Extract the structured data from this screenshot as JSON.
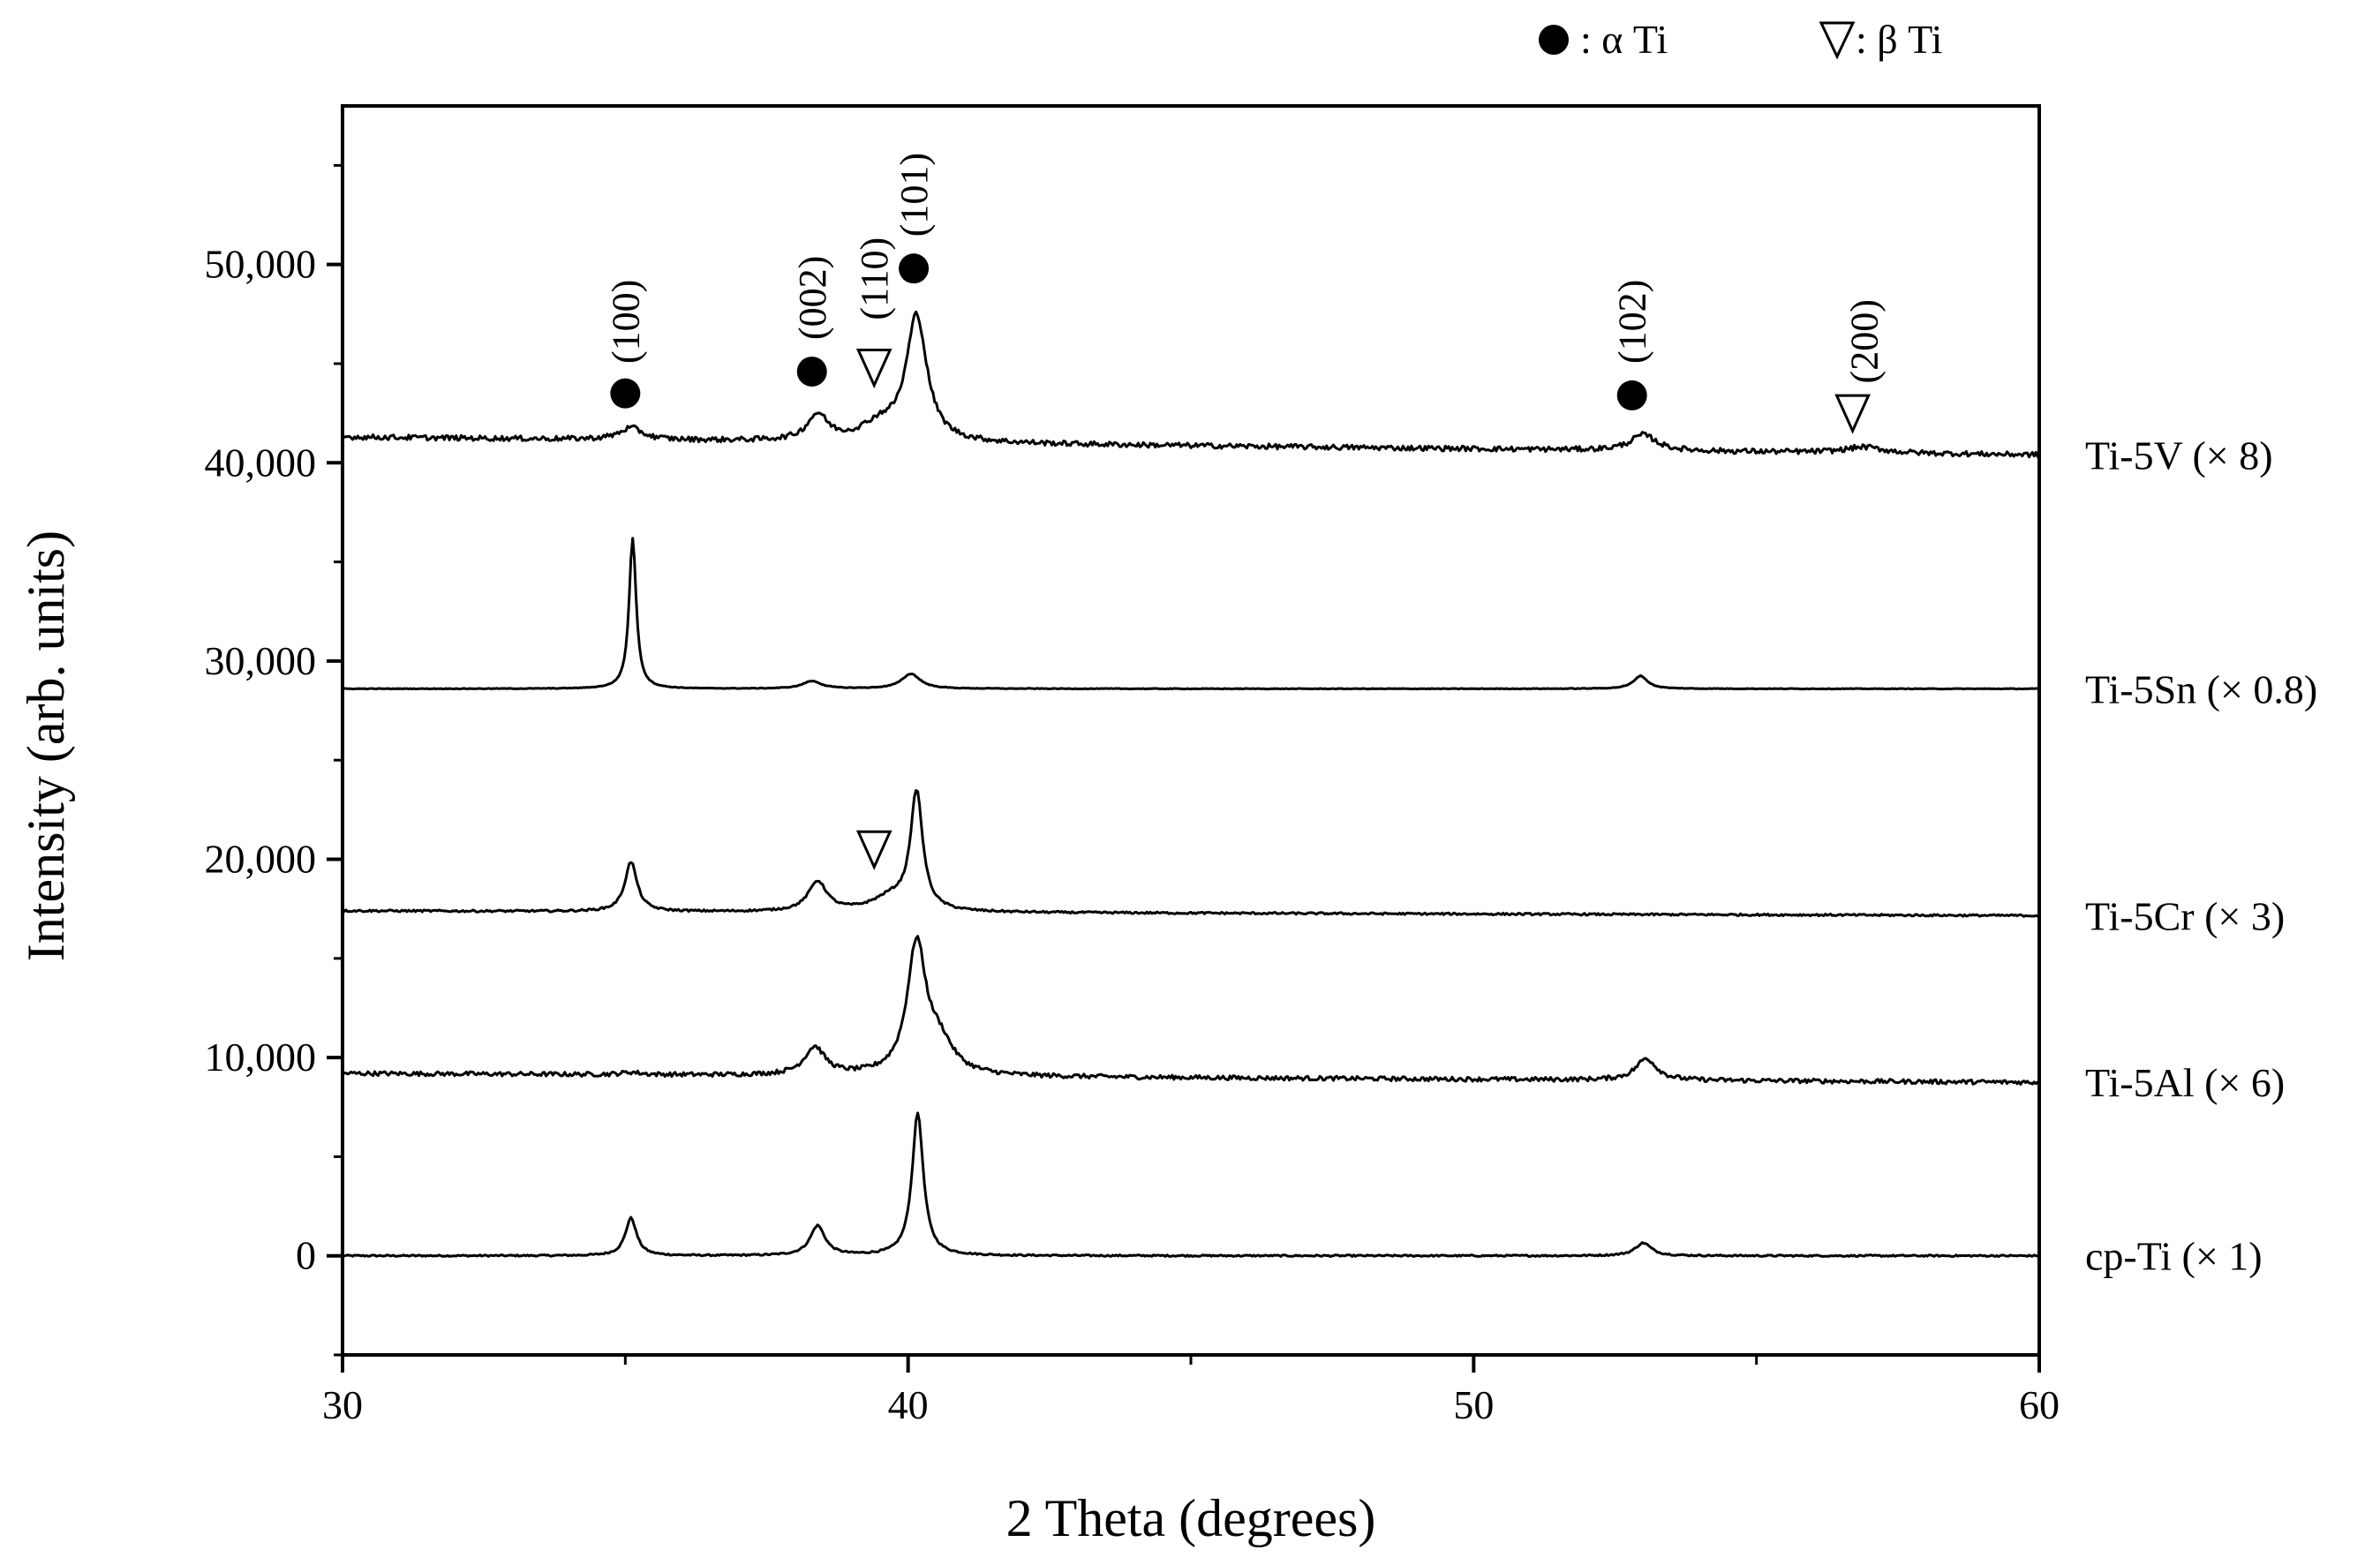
{
  "chart_data": {
    "type": "line",
    "title": "",
    "xlabel": "2 Theta (degrees)",
    "ylabel": "Intensity (arb. units)",
    "xlim": [
      30,
      60
    ],
    "ylim": [
      -5000,
      58000
    ],
    "x_ticks": [
      30,
      40,
      50,
      60
    ],
    "x_tick_labels": [
      "30",
      "40",
      "50",
      "60"
    ],
    "y_ticks": [
      0,
      10000,
      20000,
      30000,
      40000,
      50000
    ],
    "y_tick_labels": [
      "0",
      "10,000",
      "20,000",
      "30,000",
      "40,000",
      "50,000"
    ],
    "grid": false,
    "legend": {
      "placement": "top-right",
      "entries": [
        {
          "marker": "filled-circle",
          "label": ": α Ti"
        },
        {
          "marker": "open-down-triangle",
          "label": ": β Ti"
        }
      ]
    },
    "series": [
      {
        "name": "cp-Ti (× 1)",
        "baseline": 0,
        "noise": 40,
        "slope": 0,
        "peaks": [
          [
            35.1,
            1900,
            0.12
          ],
          [
            38.4,
            1500,
            0.16
          ],
          [
            40.17,
            7200,
            0.12
          ],
          [
            53.0,
            650,
            0.17
          ]
        ]
      },
      {
        "name": "Ti-5Al (× 6)",
        "baseline": 9200,
        "noise": 110,
        "slope": -15,
        "peaks": [
          [
            35.1,
            120,
            0.2
          ],
          [
            38.35,
            1400,
            0.22
          ],
          [
            40.15,
            6500,
            0.2
          ],
          [
            40.55,
            1500,
            0.3
          ],
          [
            53.05,
            1100,
            0.22
          ]
        ]
      },
      {
        "name": "Ti-5Cr (× 3)",
        "baseline": 17400,
        "noise": 50,
        "slope": -8,
        "peaks": [
          [
            35.1,
            2500,
            0.13
          ],
          [
            38.4,
            1500,
            0.2
          ],
          [
            39.7,
            700,
            0.4
          ],
          [
            40.15,
            5900,
            0.13
          ]
        ]
      },
      {
        "name": "Ti-5Sn (× 0.8)",
        "baseline": 28600,
        "noise": 15,
        "slope": 0,
        "peaks": [
          [
            35.13,
            7600,
            0.075
          ],
          [
            38.3,
            380,
            0.2
          ],
          [
            40.05,
            750,
            0.2
          ],
          [
            52.95,
            650,
            0.15
          ]
        ]
      },
      {
        "name": "Ti-5V (× 8)",
        "baseline": 41300,
        "noise": 130,
        "slope": -30,
        "peaks": [
          [
            35.1,
            600,
            0.25
          ],
          [
            38.4,
            1300,
            0.22
          ],
          [
            39.5,
            800,
            0.4
          ],
          [
            40.15,
            6300,
            0.22
          ],
          [
            53.0,
            800,
            0.28
          ],
          [
            56.9,
            300,
            0.4
          ]
        ]
      }
    ],
    "annotations": [
      {
        "type": "circle",
        "x": 35.0,
        "y": 43500
      },
      {
        "type": "text",
        "text": "(100)",
        "x": 35.0,
        "y": 45000
      },
      {
        "type": "circle",
        "x": 38.3,
        "y": 44600
      },
      {
        "type": "text",
        "text": "(002)",
        "x": 38.3,
        "y": 46200
      },
      {
        "type": "triangle",
        "x": 39.4,
        "y": 44800
      },
      {
        "type": "text",
        "text": "(110)",
        "x": 39.4,
        "y": 47200
      },
      {
        "type": "circle",
        "x": 40.1,
        "y": 49800
      },
      {
        "type": "text",
        "text": "(101)",
        "x": 40.1,
        "y": 51400
      },
      {
        "type": "circle",
        "x": 52.8,
        "y": 43400
      },
      {
        "type": "text",
        "text": "(102)",
        "x": 52.8,
        "y": 45000
      },
      {
        "type": "triangle",
        "x": 56.7,
        "y": 42500
      },
      {
        "type": "text",
        "text": "(200)",
        "x": 56.9,
        "y": 44000
      },
      {
        "type": "triangle",
        "x": 39.4,
        "y": 20500
      }
    ]
  }
}
